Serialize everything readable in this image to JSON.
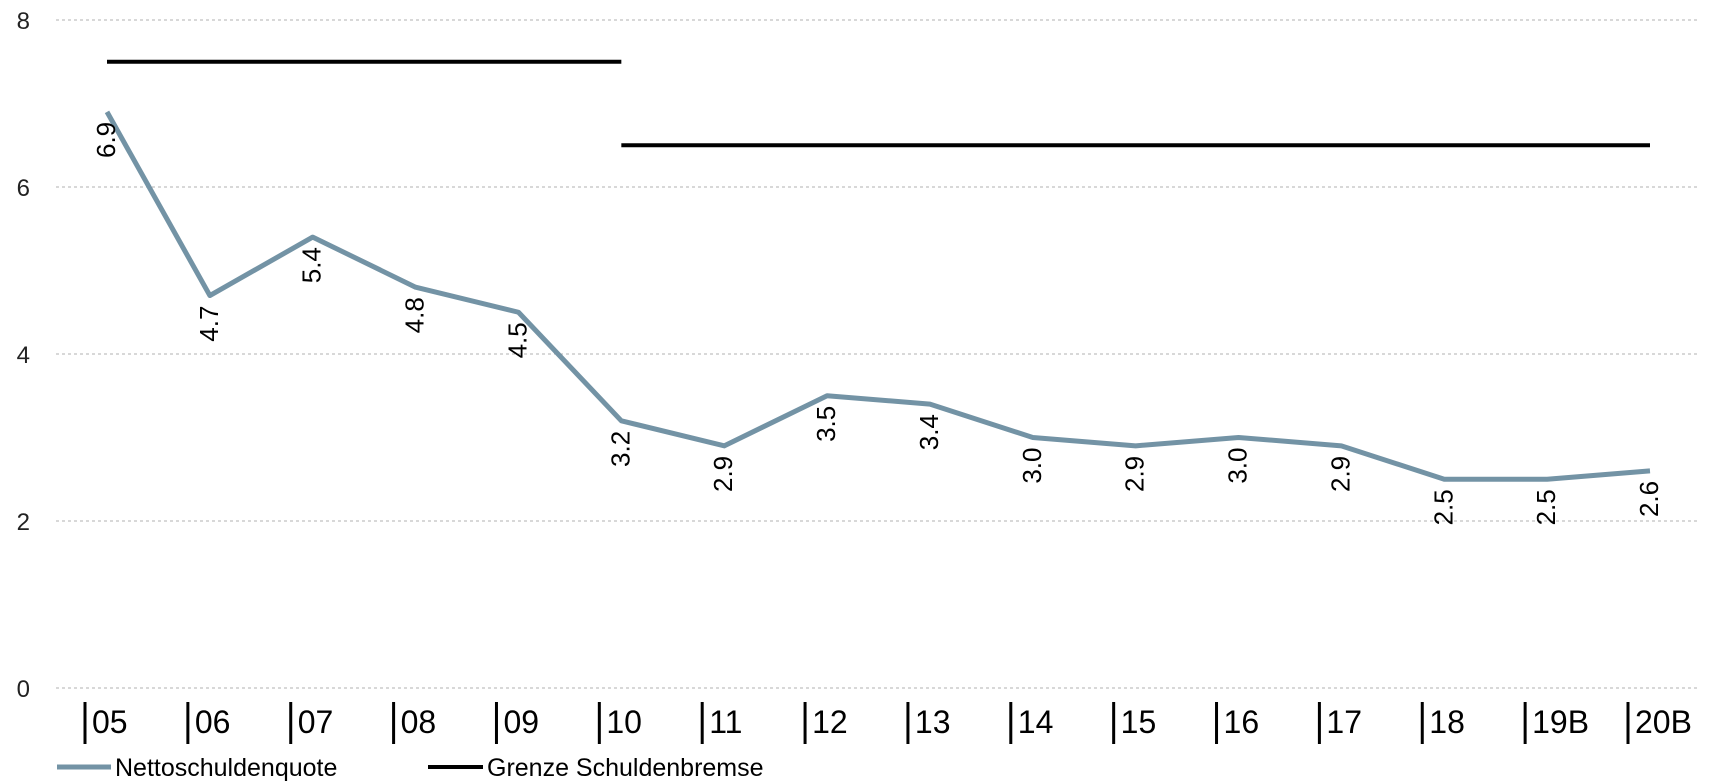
{
  "chart_data": {
    "type": "line",
    "categories": [
      "05",
      "06",
      "07",
      "08",
      "09",
      "10",
      "11",
      "12",
      "13",
      "14",
      "15",
      "16",
      "17",
      "18",
      "19B",
      "20B"
    ],
    "ylim": [
      0,
      8
    ],
    "yticks": [
      0,
      2,
      4,
      6,
      8
    ],
    "grid": true,
    "legend_position": "bottom-left",
    "colors": {
      "netto": "#7393a5",
      "grenze": "#000000",
      "grid": "#b0b0b0"
    },
    "series": [
      {
        "name": "Nettoschuldenquote",
        "values": [
          6.9,
          4.7,
          5.4,
          4.8,
          4.5,
          3.2,
          2.9,
          3.5,
          3.4,
          3.0,
          2.9,
          3.0,
          2.9,
          2.5,
          2.5,
          2.6
        ],
        "labels": [
          "6.9",
          "4.7",
          "5.4",
          "4.8",
          "4.5",
          "3.2",
          "2.9",
          "3.5",
          "3.4",
          "3.0",
          "2.9",
          "3.0",
          "2.9",
          "2.5",
          "2.5",
          "2.6"
        ]
      },
      {
        "name": "Grenze Schuldenbremse",
        "segments": [
          {
            "from": "05",
            "to": "10",
            "value": 7.5
          },
          {
            "from": "10",
            "to": "20B",
            "value": 6.5
          }
        ]
      }
    ]
  }
}
